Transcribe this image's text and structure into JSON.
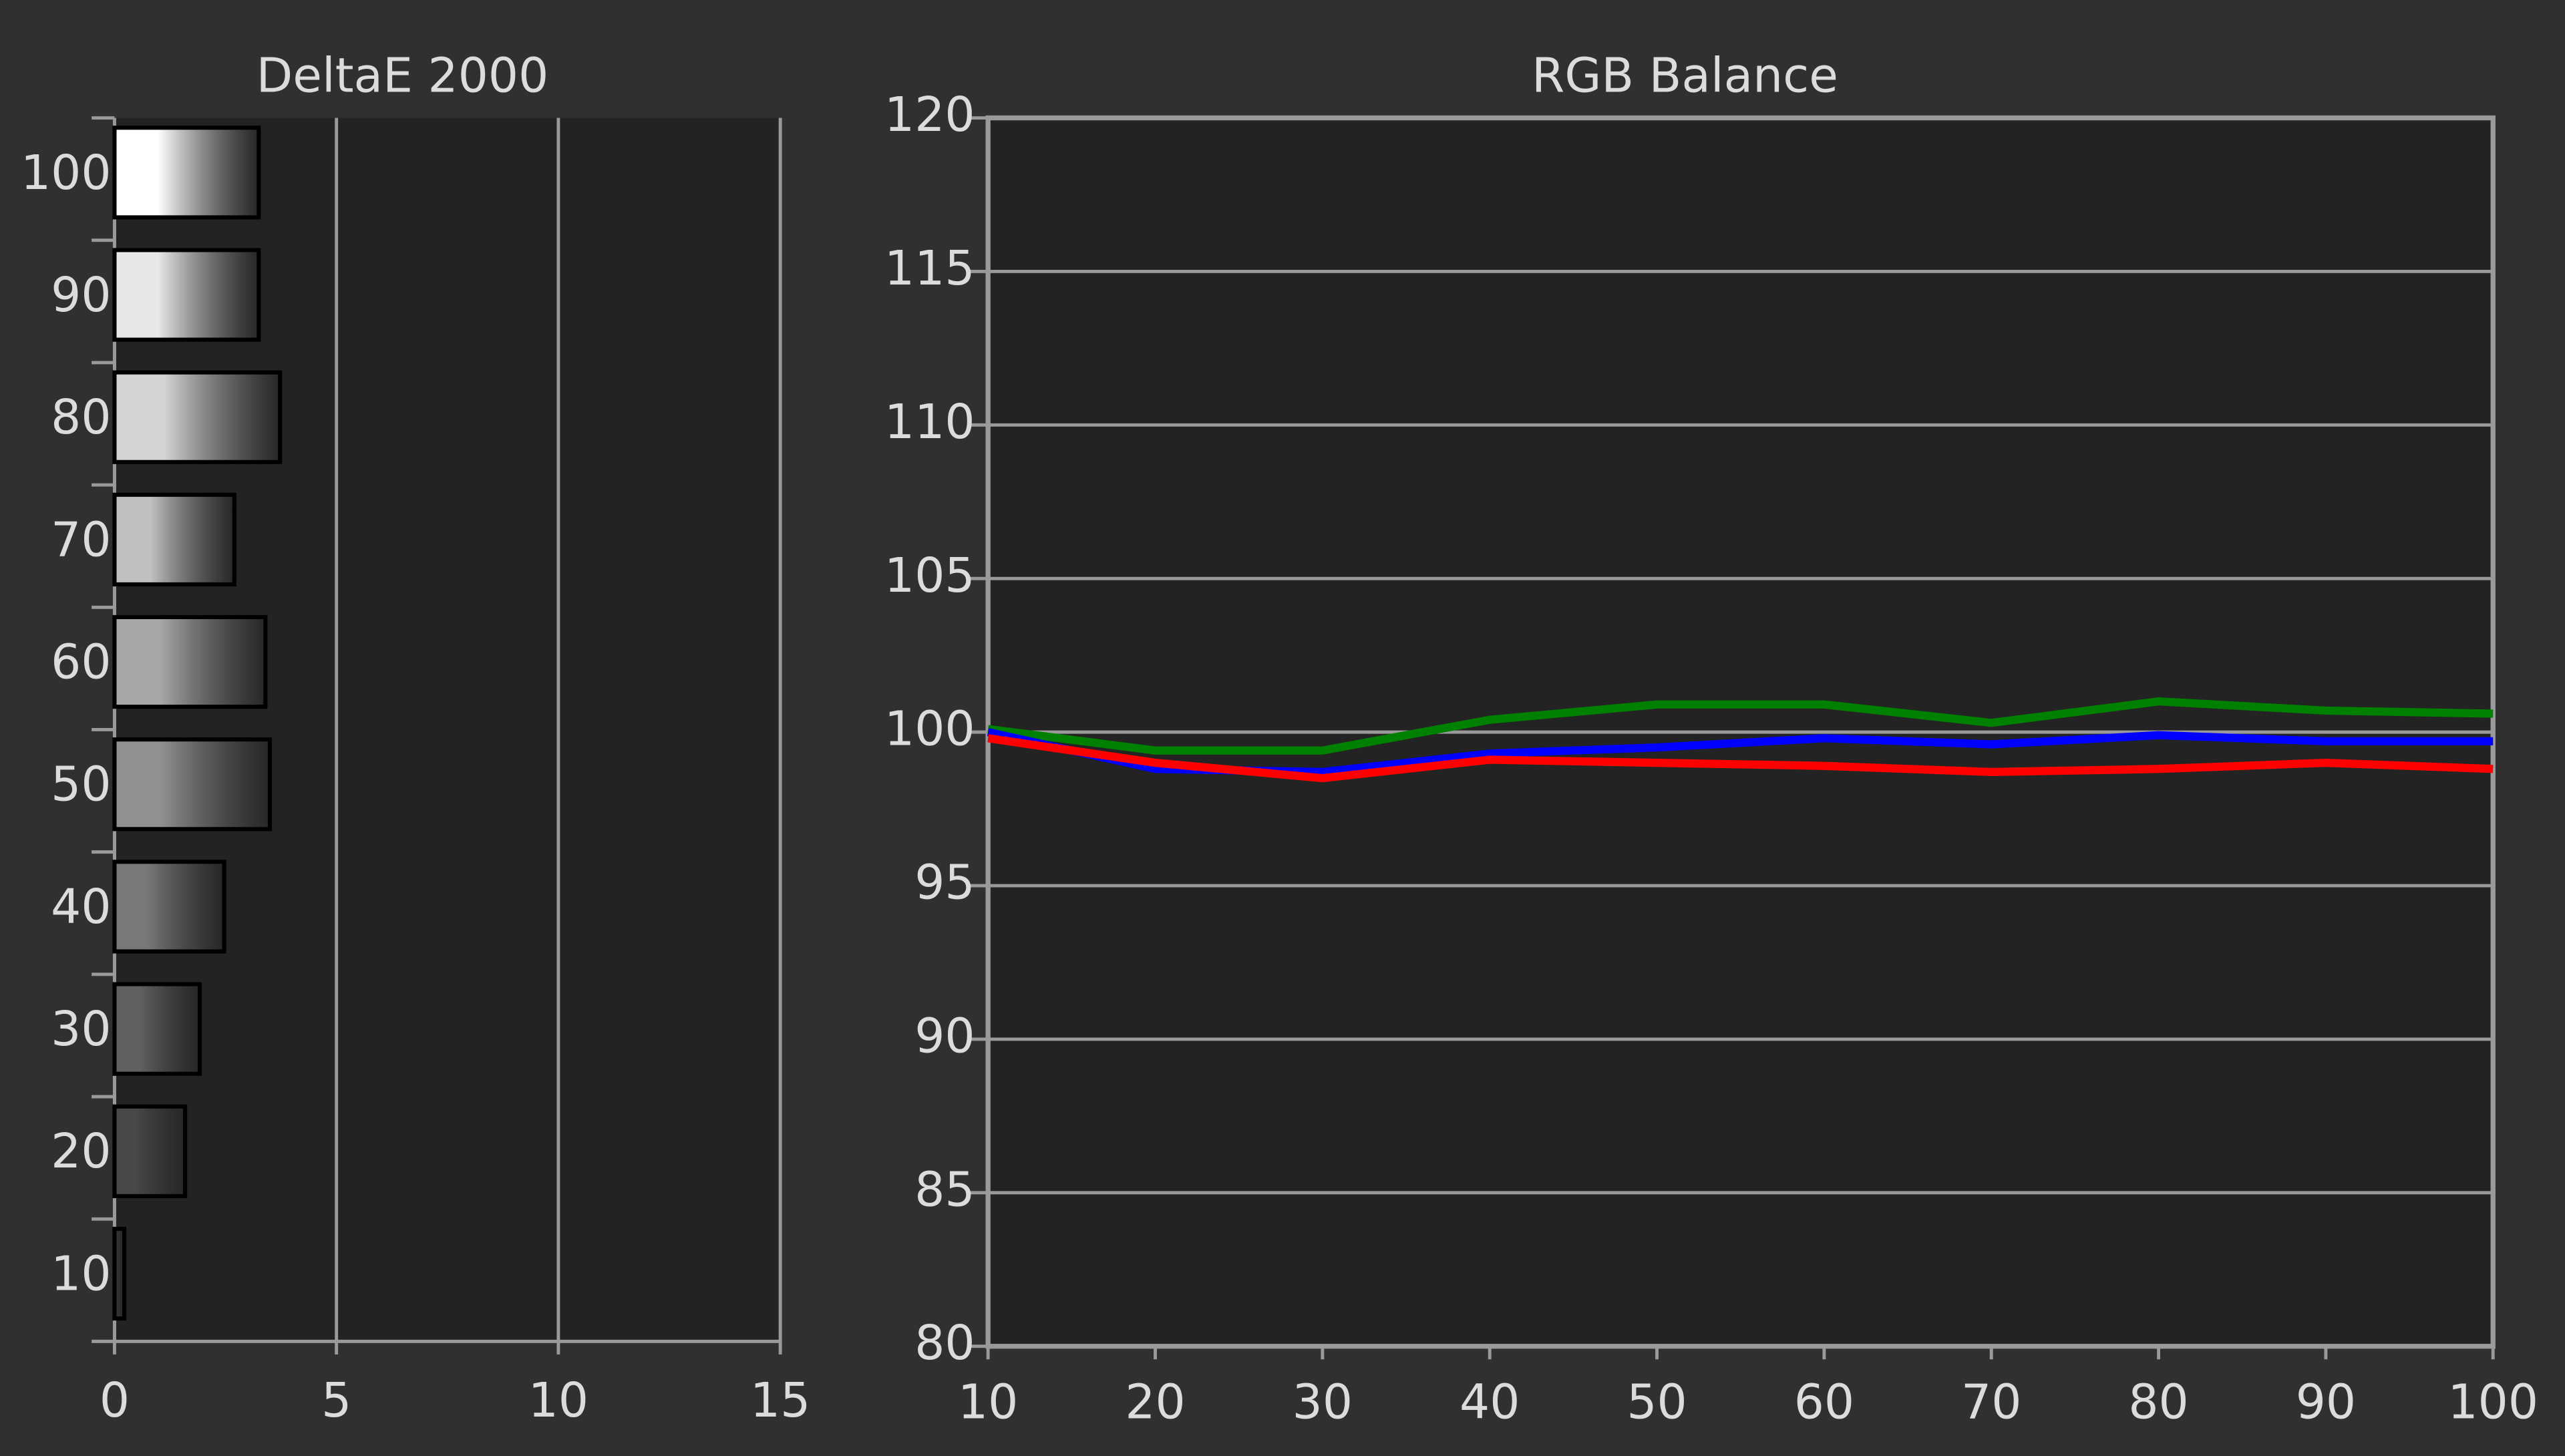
{
  "chart_data": [
    {
      "type": "bar",
      "orientation": "horizontal",
      "title": "DeltaE 2000",
      "categories": [
        "100",
        "90",
        "80",
        "70",
        "60",
        "50",
        "40",
        "30",
        "20",
        "10"
      ],
      "values": [
        3.25,
        3.25,
        3.73,
        2.7,
        3.4,
        3.5,
        2.47,
        1.92,
        1.59,
        0.22
      ],
      "colors": [
        "#ffffff",
        "#e8e8e8",
        "#d4d4d4",
        "#c0c0c0",
        "#a8a8a8",
        "#909090",
        "#787878",
        "#606060",
        "#484848",
        "#333333"
      ],
      "xlim": [
        0,
        15
      ],
      "xticks": [
        0,
        5,
        10,
        15
      ],
      "grid": true
    },
    {
      "type": "line",
      "title": "RGB Balance",
      "x": [
        10,
        20,
        30,
        40,
        50,
        60,
        70,
        80,
        90,
        100
      ],
      "series": [
        {
          "color": "#008000",
          "values": [
            100.1,
            99.4,
            99.4,
            100.4,
            100.9,
            100.9,
            100.3,
            101.0,
            100.7,
            100.6
          ]
        },
        {
          "color": "#0000ff",
          "values": [
            100.0,
            98.8,
            98.7,
            99.3,
            99.5,
            99.8,
            99.6,
            99.9,
            99.7,
            99.7
          ]
        },
        {
          "color": "#ff0000",
          "values": [
            99.8,
            99.0,
            98.5,
            99.1,
            99.0,
            98.9,
            98.7,
            98.8,
            99.0,
            98.8
          ]
        }
      ],
      "xlim": [
        10,
        100
      ],
      "xticks": [
        10,
        20,
        30,
        40,
        50,
        60,
        70,
        80,
        90,
        100
      ],
      "ylim": [
        80,
        120
      ],
      "yticks": [
        80,
        85,
        90,
        95,
        100,
        105,
        110,
        115,
        120
      ],
      "grid": true
    }
  ]
}
